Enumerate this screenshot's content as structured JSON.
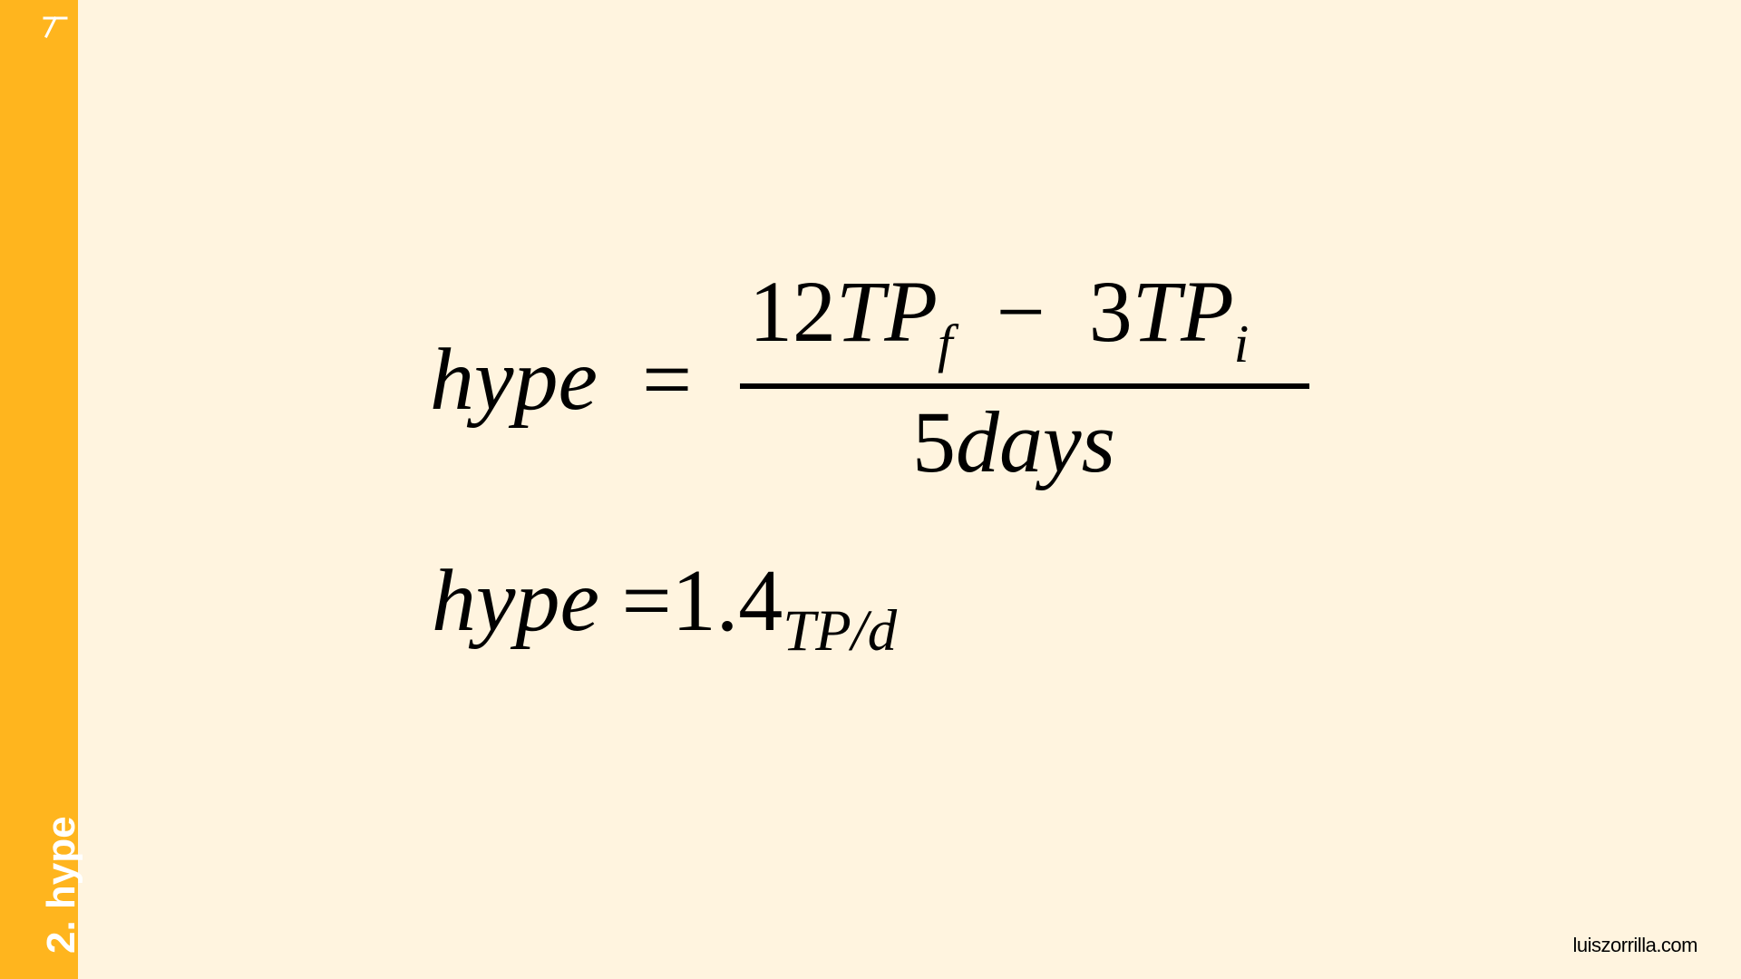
{
  "sidebar": {
    "section_title": "2. hype",
    "accent_color": "#FFB51E",
    "logo_icon": "lambda-like-logo-icon"
  },
  "slide": {
    "background_color": "#FFF4DF",
    "equation_1": {
      "lhs": "hype",
      "equals": "=",
      "numerator": {
        "term1_coef": "12",
        "term1_var": "TP",
        "term1_sub": "f",
        "minus": "−",
        "term2_coef": "3",
        "term2_var": "TP",
        "term2_sub": "i"
      },
      "denominator": {
        "coef": "5",
        "var": "days"
      }
    },
    "equation_2": {
      "lhs": "hype",
      "equals": "=",
      "value": "1.4",
      "unit_sub": "TP/d"
    }
  },
  "footer": {
    "domain": "luiszorrilla.com"
  }
}
